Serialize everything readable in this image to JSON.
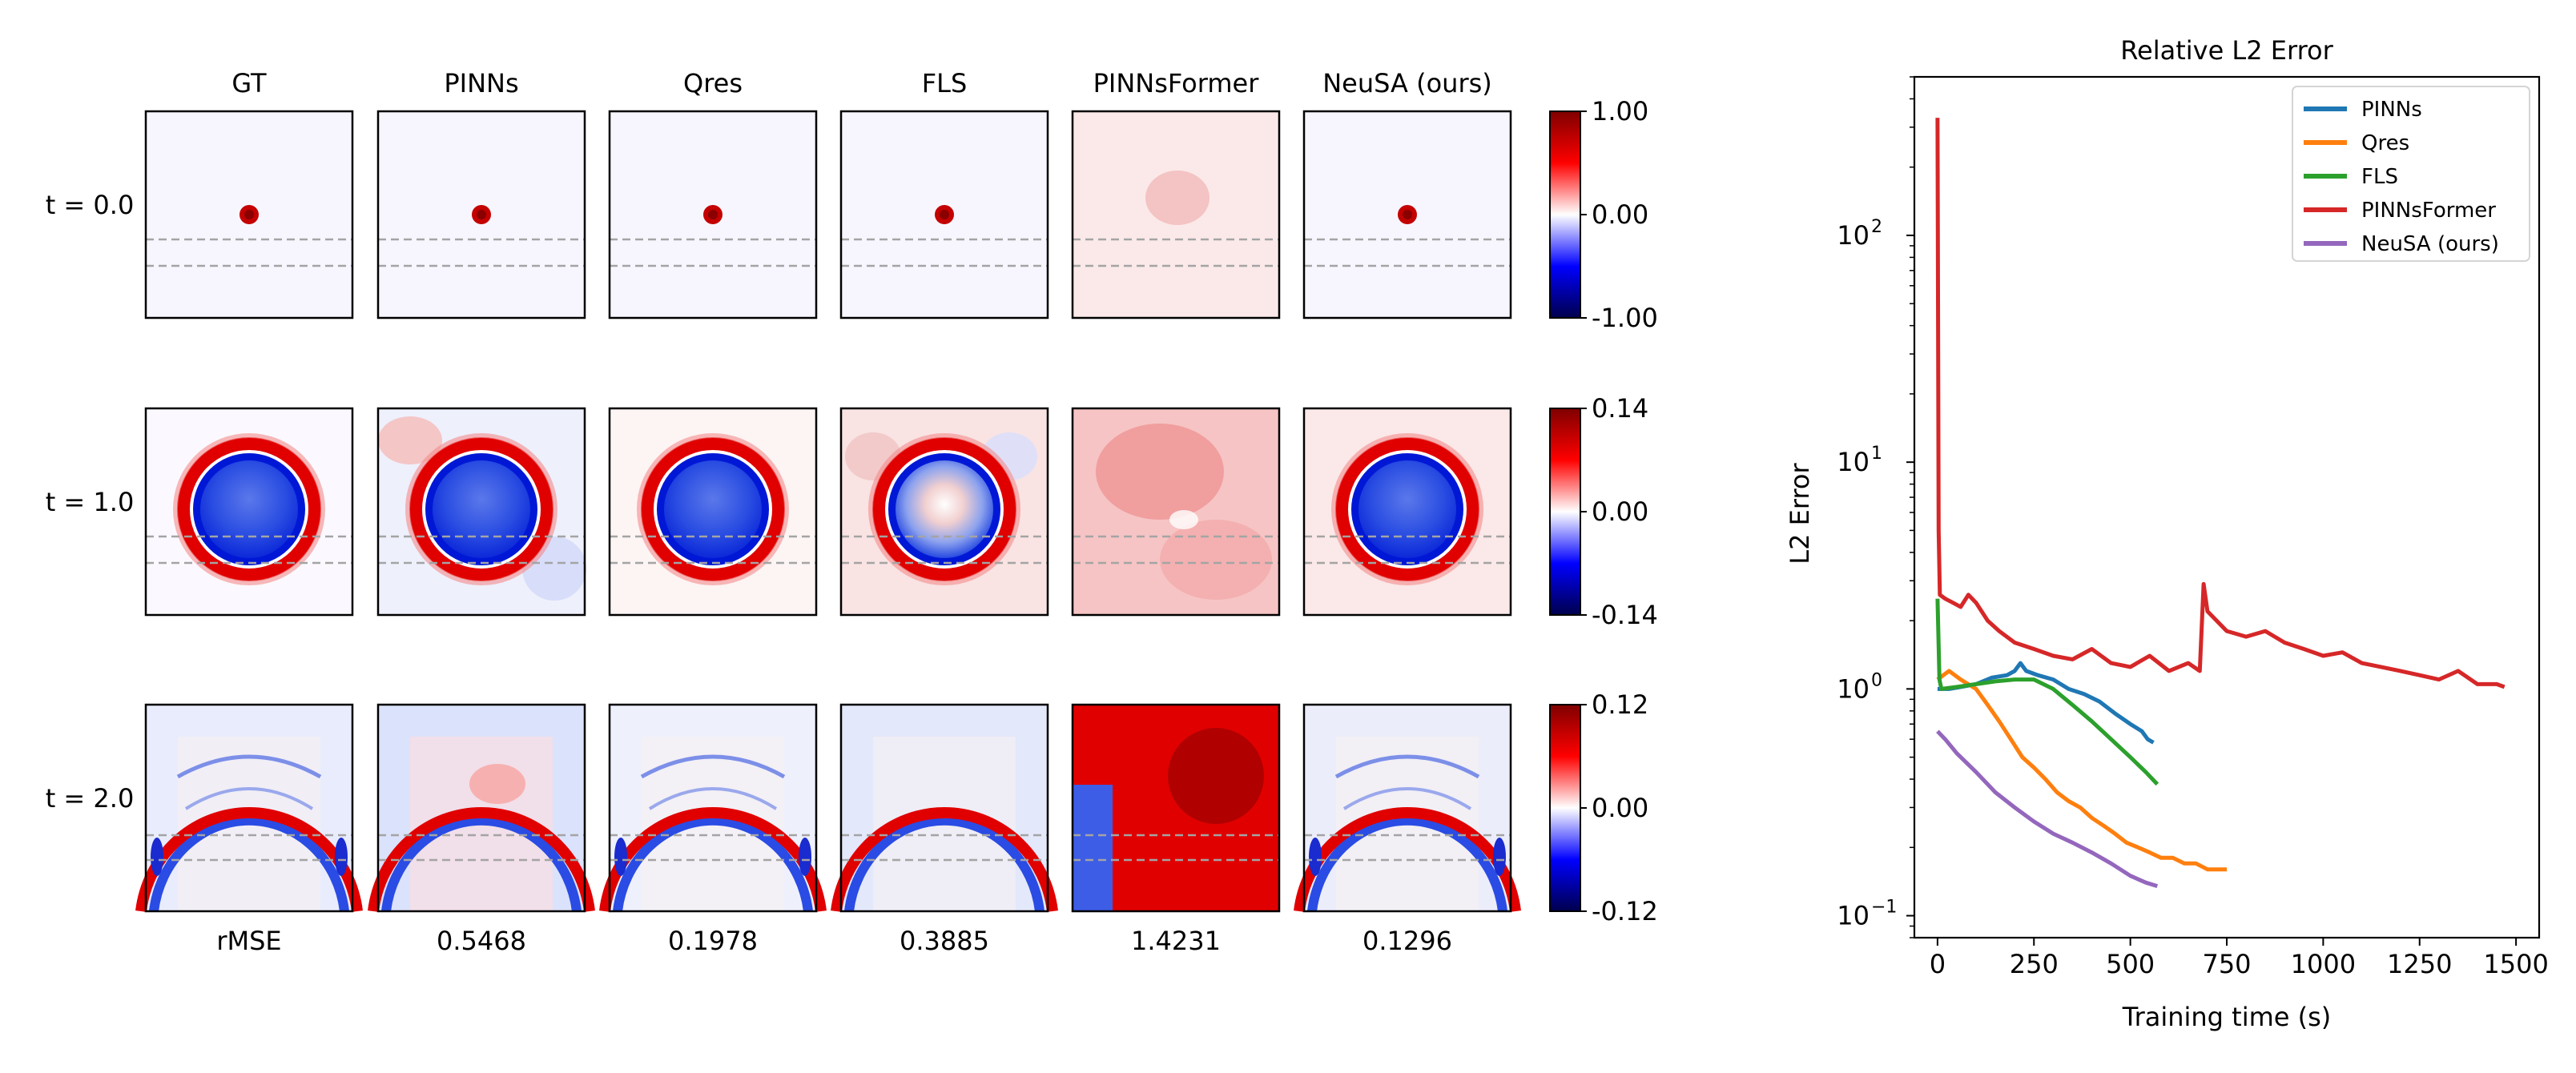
{
  "chart_data": [
    {
      "type": "heatmap",
      "columns": [
        "GT",
        "PINNs",
        "Qres",
        "FLS",
        "PINNsFormer",
        "NeuSA (ours)"
      ],
      "rows": [
        {
          "label": "t = 0.0",
          "colorbar": {
            "max": "1.00",
            "mid": "0.00",
            "min": "-1.00"
          }
        },
        {
          "label": "t = 1.0",
          "colorbar": {
            "max": "0.14",
            "mid": "0.00",
            "min": "-0.14"
          }
        },
        {
          "label": "t = 2.0",
          "colorbar": {
            "max": "0.12",
            "mid": "0.00",
            "min": "-0.12"
          }
        }
      ],
      "colormap": "seismic",
      "metric_label": "rMSE",
      "metric_values": [
        "0.5468",
        "0.1978",
        "0.3885",
        "1.4231",
        "0.1296"
      ]
    },
    {
      "type": "line",
      "title": "Relative L2 Error",
      "xlabel": "Training time (s)",
      "ylabel": "L2 Error",
      "xlim": [
        -60,
        1560
      ],
      "ylim": [
        0.08,
        500
      ],
      "yscale": "log",
      "xticks": [
        0,
        250,
        500,
        750,
        1000,
        1250,
        1500
      ],
      "xtick_labels": [
        "0",
        "250",
        "500",
        "750",
        "1000",
        "1250",
        "1500"
      ],
      "yticks": [
        {
          "value": 100,
          "base": "10",
          "exp": "2"
        },
        {
          "value": 10,
          "base": "10",
          "exp": "1"
        },
        {
          "value": 1,
          "base": "10",
          "exp": "0"
        },
        {
          "value": 0.1,
          "base": "10",
          "exp": "−1"
        }
      ],
      "legend_position": "top-right",
      "grid": false,
      "series": [
        {
          "name": "PINNs",
          "color": "#1f77b4",
          "points": [
            [
              0,
              1.0
            ],
            [
              30,
              1.0
            ],
            [
              60,
              1.02
            ],
            [
              100,
              1.05
            ],
            [
              140,
              1.12
            ],
            [
              180,
              1.15
            ],
            [
              200,
              1.2
            ],
            [
              215,
              1.3
            ],
            [
              230,
              1.2
            ],
            [
              260,
              1.15
            ],
            [
              300,
              1.1
            ],
            [
              340,
              1.0
            ],
            [
              380,
              0.95
            ],
            [
              420,
              0.88
            ],
            [
              460,
              0.78
            ],
            [
              500,
              0.7
            ],
            [
              530,
              0.65
            ],
            [
              545,
              0.6
            ],
            [
              560,
              0.58
            ]
          ]
        },
        {
          "name": "Qres",
          "color": "#ff7f0e",
          "points": [
            [
              0,
              1.1
            ],
            [
              15,
              1.15
            ],
            [
              30,
              1.2
            ],
            [
              60,
              1.1
            ],
            [
              100,
              1.0
            ],
            [
              130,
              0.85
            ],
            [
              160,
              0.72
            ],
            [
              190,
              0.6
            ],
            [
              220,
              0.5
            ],
            [
              250,
              0.45
            ],
            [
              280,
              0.4
            ],
            [
              310,
              0.35
            ],
            [
              340,
              0.32
            ],
            [
              370,
              0.3
            ],
            [
              400,
              0.27
            ],
            [
              430,
              0.25
            ],
            [
              460,
              0.23
            ],
            [
              490,
              0.21
            ],
            [
              520,
              0.2
            ],
            [
              550,
              0.19
            ],
            [
              580,
              0.18
            ],
            [
              610,
              0.18
            ],
            [
              640,
              0.17
            ],
            [
              670,
              0.17
            ],
            [
              700,
              0.16
            ],
            [
              730,
              0.16
            ],
            [
              750,
              0.16
            ]
          ]
        },
        {
          "name": "FLS",
          "color": "#2ca02c",
          "points": [
            [
              0,
              2.5
            ],
            [
              5,
              1.1
            ],
            [
              10,
              1.0
            ],
            [
              50,
              1.02
            ],
            [
              100,
              1.05
            ],
            [
              150,
              1.08
            ],
            [
              200,
              1.1
            ],
            [
              250,
              1.1
            ],
            [
              300,
              1.0
            ],
            [
              350,
              0.85
            ],
            [
              400,
              0.72
            ],
            [
              450,
              0.6
            ],
            [
              500,
              0.5
            ],
            [
              540,
              0.43
            ],
            [
              570,
              0.38
            ]
          ]
        },
        {
          "name": "PINNsFormer",
          "color": "#d62728",
          "points": [
            [
              0,
              330
            ],
            [
              3,
              5
            ],
            [
              6,
              2.6
            ],
            [
              20,
              2.5
            ],
            [
              40,
              2.4
            ],
            [
              60,
              2.3
            ],
            [
              80,
              2.6
            ],
            [
              100,
              2.4
            ],
            [
              130,
              2.0
            ],
            [
              160,
              1.8
            ],
            [
              200,
              1.6
            ],
            [
              250,
              1.5
            ],
            [
              300,
              1.4
            ],
            [
              350,
              1.35
            ],
            [
              400,
              1.5
            ],
            [
              450,
              1.3
            ],
            [
              500,
              1.25
            ],
            [
              550,
              1.4
            ],
            [
              600,
              1.2
            ],
            [
              650,
              1.3
            ],
            [
              680,
              1.2
            ],
            [
              690,
              2.9
            ],
            [
              700,
              2.2
            ],
            [
              750,
              1.8
            ],
            [
              800,
              1.7
            ],
            [
              850,
              1.8
            ],
            [
              900,
              1.6
            ],
            [
              950,
              1.5
            ],
            [
              1000,
              1.4
            ],
            [
              1050,
              1.45
            ],
            [
              1100,
              1.3
            ],
            [
              1150,
              1.25
            ],
            [
              1200,
              1.2
            ],
            [
              1250,
              1.15
            ],
            [
              1300,
              1.1
            ],
            [
              1350,
              1.2
            ],
            [
              1400,
              1.05
            ],
            [
              1450,
              1.05
            ],
            [
              1470,
              1.02
            ]
          ]
        },
        {
          "name": "NeuSA (ours)",
          "color": "#9467bd",
          "points": [
            [
              0,
              0.65
            ],
            [
              20,
              0.6
            ],
            [
              50,
              0.52
            ],
            [
              100,
              0.43
            ],
            [
              150,
              0.35
            ],
            [
              200,
              0.3
            ],
            [
              250,
              0.26
            ],
            [
              300,
              0.23
            ],
            [
              350,
              0.21
            ],
            [
              400,
              0.19
            ],
            [
              450,
              0.17
            ],
            [
              500,
              0.15
            ],
            [
              540,
              0.14
            ],
            [
              570,
              0.135
            ]
          ]
        }
      ]
    }
  ]
}
